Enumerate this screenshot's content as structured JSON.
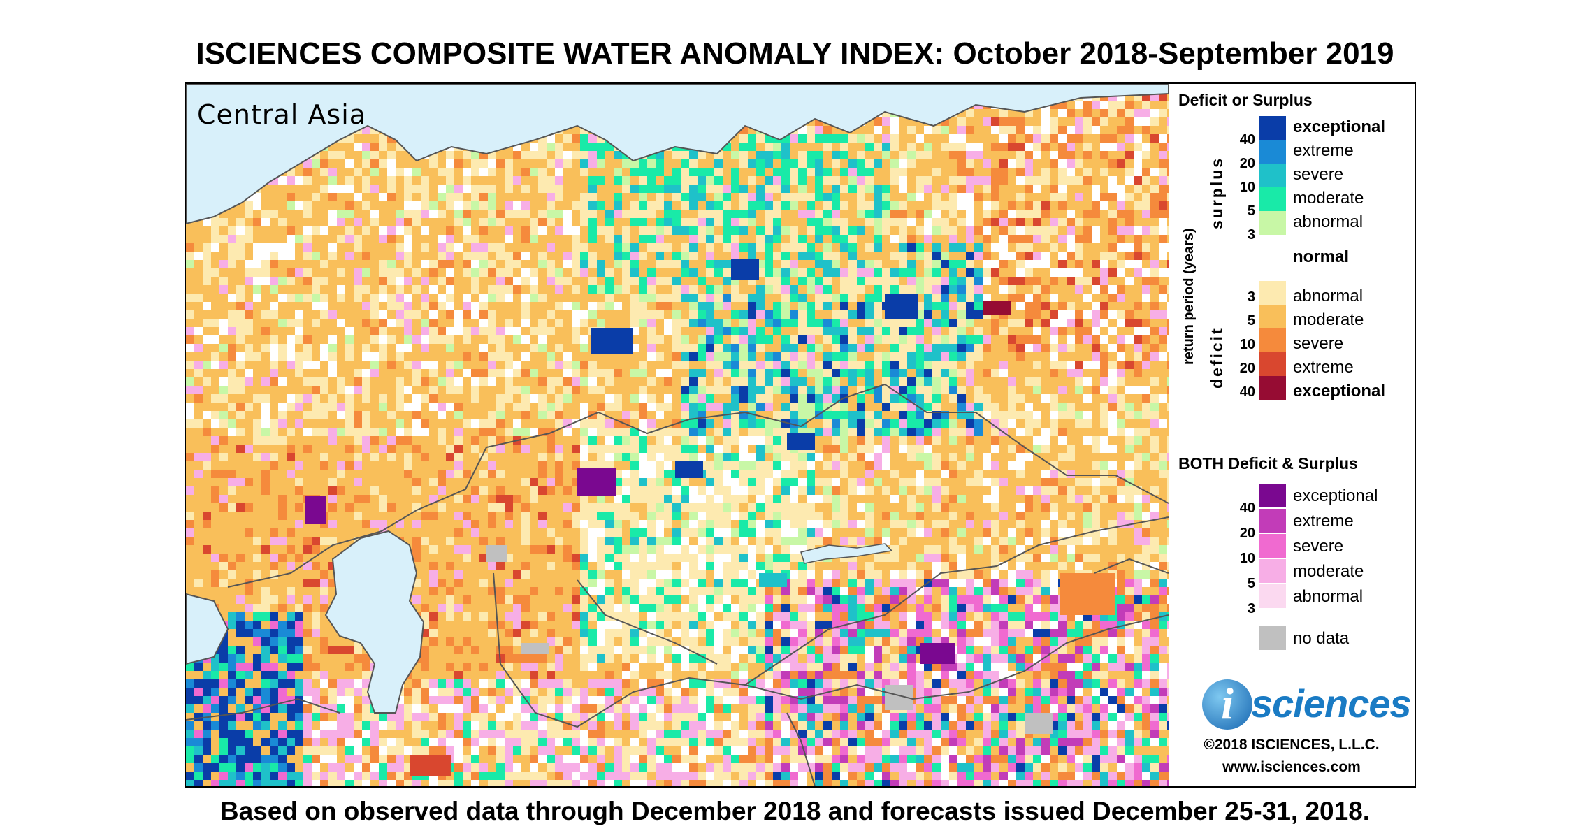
{
  "title": "ISCIENCES COMPOSITE WATER ANOMALY INDEX: October 2018-September 2019",
  "subtitle": "Based on observed data through December 2018 and forecasts issued December 25-31, 2018.",
  "region": "Central Asia",
  "legend": {
    "heading_main": "Deficit or Surplus",
    "axis_label": "return period (years)",
    "surplus_label": "surplus",
    "deficit_label": "deficit",
    "normal_label": "normal",
    "surplus": [
      {
        "label": "exceptional",
        "bold": true,
        "color": "#0a3da8",
        "tick": "40"
      },
      {
        "label": "extreme",
        "bold": false,
        "color": "#1a8ad6",
        "tick": "20"
      },
      {
        "label": "severe",
        "bold": false,
        "color": "#1fc1c9",
        "tick": "10"
      },
      {
        "label": "moderate",
        "bold": false,
        "color": "#19eaa8",
        "tick": "5"
      },
      {
        "label": "abnormal",
        "bold": false,
        "color": "#c8f7a6",
        "tick": "3"
      }
    ],
    "deficit": [
      {
        "label": "abnormal",
        "bold": false,
        "color": "#fdeab0",
        "tick": "3"
      },
      {
        "label": "moderate",
        "bold": false,
        "color": "#f9bf5a",
        "tick": "5"
      },
      {
        "label": "severe",
        "bold": false,
        "color": "#f58a3c",
        "tick": "10"
      },
      {
        "label": "extreme",
        "bold": false,
        "color": "#d9472f",
        "tick": "20"
      },
      {
        "label": "exceptional",
        "bold": true,
        "color": "#960c33",
        "tick": "40"
      }
    ],
    "heading_both": "BOTH Deficit & Surplus",
    "both": [
      {
        "label": "exceptional",
        "color": "#7a0890",
        "tick": "40"
      },
      {
        "label": "extreme",
        "color": "#c23cb8",
        "tick": "20"
      },
      {
        "label": "severe",
        "color": "#f06ad0",
        "tick": "10"
      },
      {
        "label": "moderate",
        "color": "#f7aee6",
        "tick": "5"
      },
      {
        "label": "abnormal",
        "color": "#fbd9f0",
        "tick": "3"
      }
    ],
    "nodata_label": "no data",
    "nodata_color": "#c0c0c0"
  },
  "colors": {
    "water": "#d8f0fa",
    "normal": "#ffffff",
    "border": "#555555"
  },
  "branding": {
    "logo_letter": "i",
    "logo_text": "sciences",
    "copyright": "©2018 ISCIENCES, L.L.C.",
    "url": "www.isciences.com"
  }
}
